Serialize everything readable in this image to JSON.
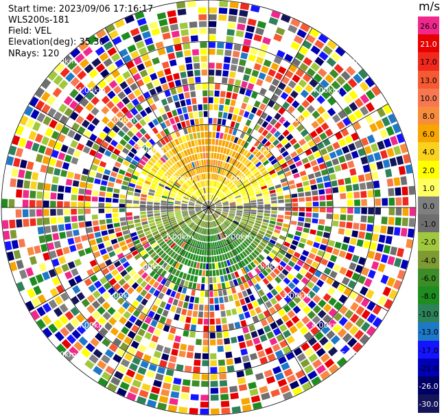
{
  "info": {
    "start_time": "Start time: 2023/09/06 17:16:17",
    "instrument": "WLS200s-181",
    "field": "Field: VEL",
    "elevation": "Elevation(deg): 35.30",
    "nrays": "NRays: 120"
  },
  "colorbar": {
    "unit": "m/s",
    "levels": [
      {
        "label": "26.0",
        "color": "#f0288c",
        "light": false
      },
      {
        "label": "21.0",
        "color": "#e60000",
        "light": true
      },
      {
        "label": "17.0",
        "color": "#f0281e",
        "light": false
      },
      {
        "label": "13.0",
        "color": "#f55a32",
        "light": false
      },
      {
        "label": "10.0",
        "color": "#f77850",
        "light": false
      },
      {
        "label": "8.0",
        "color": "#f78c3c",
        "light": false
      },
      {
        "label": "6.0",
        "color": "#f7a500",
        "light": false
      },
      {
        "label": "4.0",
        "color": "#fad21e",
        "light": false
      },
      {
        "label": "2.0",
        "color": "#ffff00",
        "light": false
      },
      {
        "label": "1.0",
        "color": "#ffff64",
        "light": false
      },
      {
        "label": "0.0",
        "color": "#7f7f7f",
        "light": false
      },
      {
        "label": "-1.0",
        "color": "#6e6e6e",
        "light": false
      },
      {
        "label": "-2.0",
        "color": "#a0c83c",
        "light": false
      },
      {
        "label": "-4.0",
        "color": "#7d9b32",
        "light": false
      },
      {
        "label": "-6.0",
        "color": "#3c8c28",
        "light": false
      },
      {
        "label": "-8.0",
        "color": "#1e8c1e",
        "light": false
      },
      {
        "label": "-10.0",
        "color": "#2d825a",
        "light": false
      },
      {
        "label": "-13.0",
        "color": "#1e78c8",
        "light": false
      },
      {
        "label": "-17.0",
        "color": "#1414ff",
        "light": false
      },
      {
        "label": "-21.0",
        "color": "#0000b4",
        "light": false
      },
      {
        "label": "-26.0",
        "color": "#000064",
        "light": true
      },
      {
        "label": "-30.0",
        "color": "#14145a",
        "light": true
      }
    ]
  },
  "chart_data": {
    "type": "heatmap",
    "projection": "polar PPI",
    "field": "VEL",
    "unit": "m/s",
    "nrays": 120,
    "elevation_deg": 35.3,
    "range_rings": [
      {
        "label": "1.00km"
      },
      {
        "label": "2.00km"
      },
      {
        "label": "3.00km"
      },
      {
        "label": "4.00km"
      },
      {
        "label": "5.00km"
      }
    ],
    "spokes_deg": [
      0,
      30,
      60,
      90,
      120,
      150,
      180,
      210,
      240,
      270,
      300,
      330
    ],
    "velocity_range": [
      -30.0,
      26.0
    ],
    "valid_data_max_range_km": 1.5
  }
}
